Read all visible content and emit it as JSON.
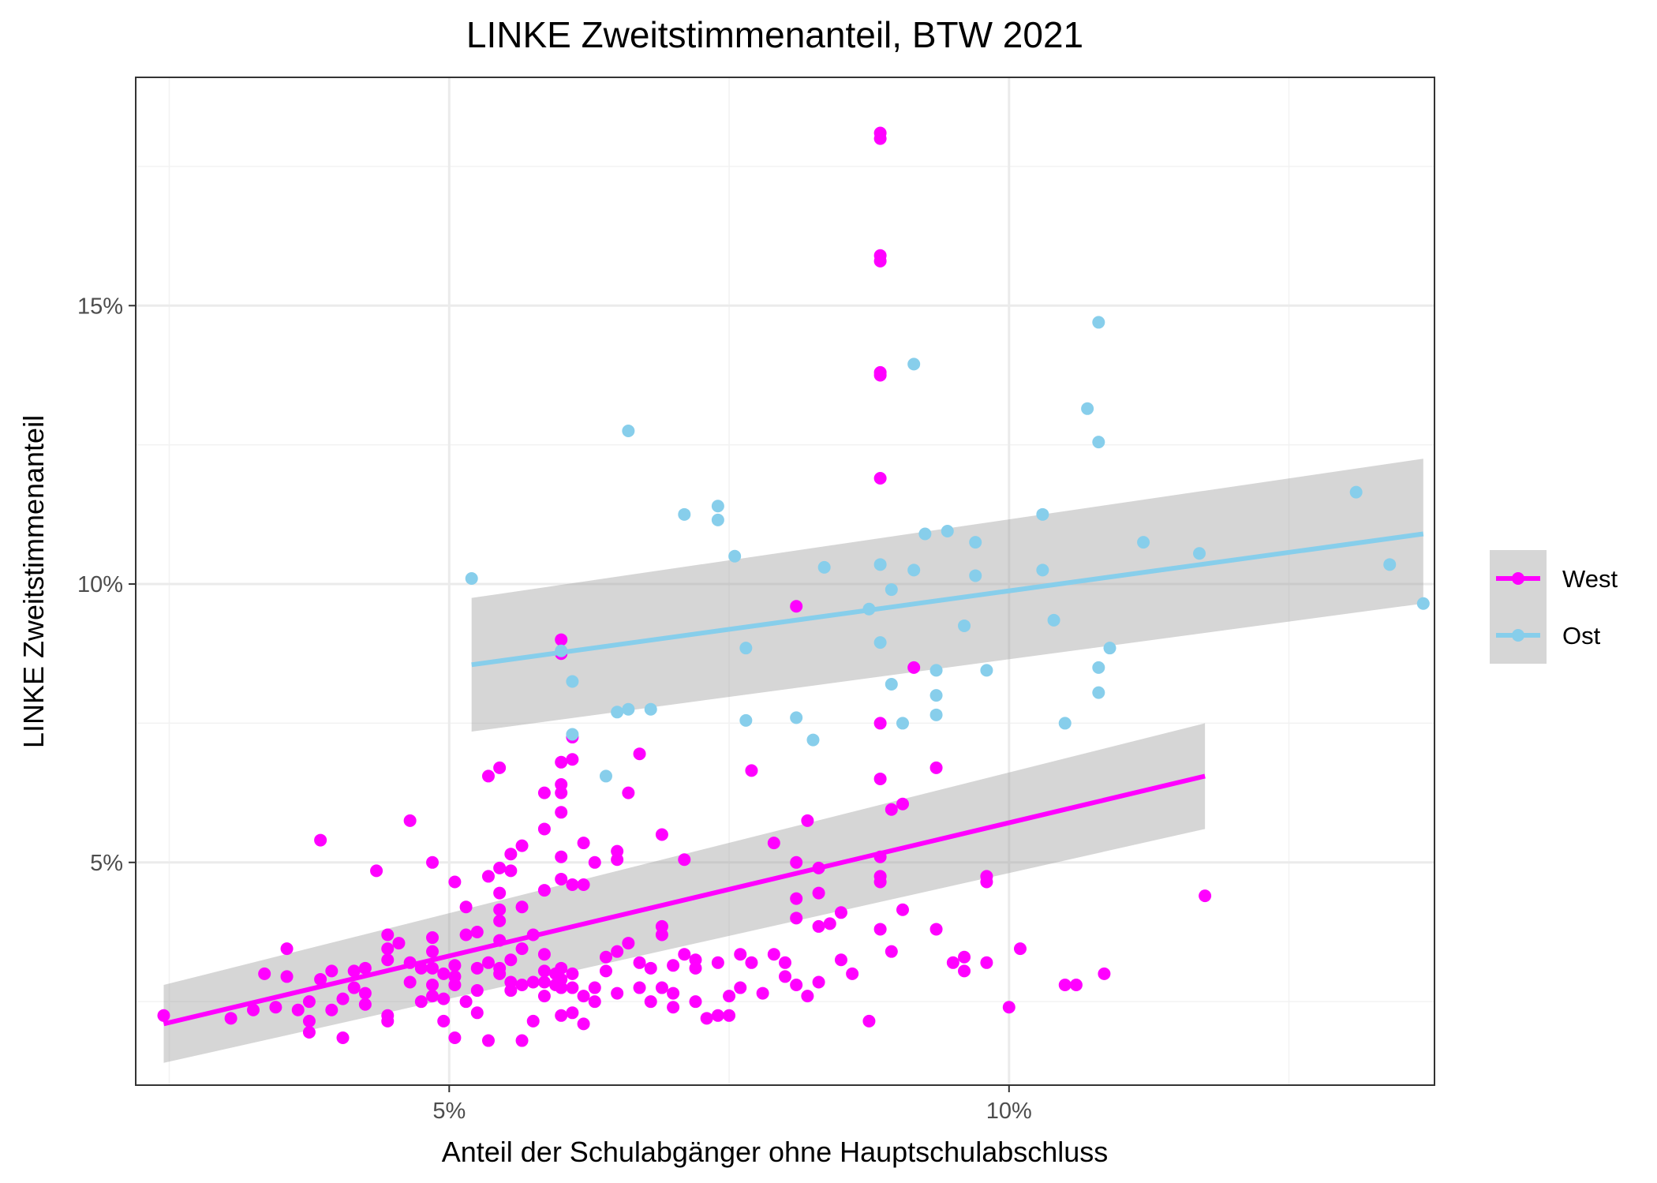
{
  "chart_data": {
    "type": "scatter",
    "title": "LINKE Zweitstimmenanteil, BTW 2021",
    "xlabel": "Anteil der Schulabgänger ohne Hauptschulabschluss",
    "ylabel": "LINKE Zweitstimmenanteil",
    "xlim": [
      2.2,
      13.8
    ],
    "ylim": [
      1.0,
      19.1
    ],
    "x_ticks": [
      5,
      10
    ],
    "x_tick_labels": [
      "5%",
      "10%"
    ],
    "y_ticks": [
      5,
      10,
      15
    ],
    "y_tick_labels": [
      "5%",
      "10%",
      "15%"
    ],
    "grid": true,
    "legend_position": "right",
    "series": [
      {
        "name": "West",
        "color": "#ff00ff",
        "trend": {
          "x": [
            2.45,
            11.75
          ],
          "y": [
            2.1,
            6.55
          ],
          "ci_lower": [
            1.4,
            5.6
          ],
          "ci_upper": [
            2.8,
            7.5
          ]
        },
        "points": [
          [
            2.45,
            2.25
          ],
          [
            3.05,
            2.2
          ],
          [
            3.25,
            2.35
          ],
          [
            3.35,
            3.0
          ],
          [
            3.45,
            2.4
          ],
          [
            3.55,
            3.45
          ],
          [
            3.55,
            2.95
          ],
          [
            3.65,
            2.35
          ],
          [
            3.75,
            2.5
          ],
          [
            3.75,
            2.15
          ],
          [
            3.75,
            1.95
          ],
          [
            3.85,
            5.4
          ],
          [
            3.85,
            2.9
          ],
          [
            3.95,
            2.35
          ],
          [
            3.95,
            3.05
          ],
          [
            4.05,
            2.55
          ],
          [
            4.05,
            1.85
          ],
          [
            4.15,
            3.05
          ],
          [
            4.15,
            2.75
          ],
          [
            4.25,
            3.1
          ],
          [
            4.25,
            2.65
          ],
          [
            4.25,
            2.45
          ],
          [
            4.35,
            4.85
          ],
          [
            4.45,
            3.7
          ],
          [
            4.45,
            3.45
          ],
          [
            4.45,
            3.25
          ],
          [
            4.45,
            2.25
          ],
          [
            4.45,
            2.15
          ],
          [
            4.55,
            3.55
          ],
          [
            4.65,
            5.75
          ],
          [
            4.65,
            3.2
          ],
          [
            4.65,
            2.85
          ],
          [
            4.75,
            3.1
          ],
          [
            4.75,
            2.5
          ],
          [
            4.85,
            5.0
          ],
          [
            4.85,
            3.65
          ],
          [
            4.85,
            3.4
          ],
          [
            4.85,
            3.1
          ],
          [
            4.85,
            2.8
          ],
          [
            4.85,
            2.6
          ],
          [
            4.95,
            3.0
          ],
          [
            4.95,
            2.55
          ],
          [
            4.95,
            2.15
          ],
          [
            5.05,
            4.65
          ],
          [
            5.05,
            3.15
          ],
          [
            5.05,
            2.95
          ],
          [
            5.05,
            2.8
          ],
          [
            5.05,
            1.85
          ],
          [
            5.15,
            4.2
          ],
          [
            5.15,
            3.7
          ],
          [
            5.15,
            2.5
          ],
          [
            5.25,
            3.75
          ],
          [
            5.25,
            3.1
          ],
          [
            5.25,
            2.7
          ],
          [
            5.25,
            2.3
          ],
          [
            5.35,
            6.55
          ],
          [
            5.35,
            4.75
          ],
          [
            5.35,
            3.2
          ],
          [
            5.35,
            1.8
          ],
          [
            5.45,
            6.7
          ],
          [
            5.45,
            4.9
          ],
          [
            5.45,
            4.45
          ],
          [
            5.45,
            4.15
          ],
          [
            5.45,
            3.95
          ],
          [
            5.45,
            3.6
          ],
          [
            5.45,
            3.1
          ],
          [
            5.45,
            3.0
          ],
          [
            5.55,
            5.15
          ],
          [
            5.55,
            4.85
          ],
          [
            5.55,
            3.25
          ],
          [
            5.55,
            2.85
          ],
          [
            5.55,
            2.7
          ],
          [
            5.65,
            5.3
          ],
          [
            5.65,
            4.2
          ],
          [
            5.65,
            3.45
          ],
          [
            5.65,
            2.8
          ],
          [
            5.65,
            1.8
          ],
          [
            5.75,
            3.7
          ],
          [
            5.75,
            2.85
          ],
          [
            5.75,
            2.15
          ],
          [
            5.85,
            6.25
          ],
          [
            5.85,
            5.6
          ],
          [
            5.85,
            4.5
          ],
          [
            5.85,
            3.35
          ],
          [
            5.85,
            3.05
          ],
          [
            5.85,
            2.85
          ],
          [
            5.85,
            2.6
          ],
          [
            5.95,
            3.0
          ],
          [
            5.95,
            2.8
          ],
          [
            6.0,
            9.0
          ],
          [
            6.0,
            8.75
          ],
          [
            6.0,
            6.8
          ],
          [
            6.0,
            6.4
          ],
          [
            6.0,
            6.25
          ],
          [
            6.0,
            5.9
          ],
          [
            6.0,
            5.1
          ],
          [
            6.0,
            4.7
          ],
          [
            6.0,
            3.1
          ],
          [
            6.0,
            2.9
          ],
          [
            6.0,
            2.75
          ],
          [
            6.0,
            2.25
          ],
          [
            6.1,
            7.25
          ],
          [
            6.1,
            6.85
          ],
          [
            6.1,
            4.6
          ],
          [
            6.1,
            3.0
          ],
          [
            6.1,
            2.75
          ],
          [
            6.1,
            2.3
          ],
          [
            6.2,
            5.35
          ],
          [
            6.2,
            4.6
          ],
          [
            6.2,
            2.6
          ],
          [
            6.2,
            2.1
          ],
          [
            6.3,
            5.0
          ],
          [
            6.3,
            2.75
          ],
          [
            6.3,
            2.5
          ],
          [
            6.4,
            3.3
          ],
          [
            6.4,
            3.05
          ],
          [
            6.5,
            3.4
          ],
          [
            6.5,
            5.2
          ],
          [
            6.5,
            5.05
          ],
          [
            6.5,
            2.65
          ],
          [
            6.6,
            6.25
          ],
          [
            6.6,
            3.55
          ],
          [
            6.7,
            6.95
          ],
          [
            6.7,
            3.2
          ],
          [
            6.7,
            2.75
          ],
          [
            6.8,
            3.1
          ],
          [
            6.8,
            2.5
          ],
          [
            6.9,
            5.5
          ],
          [
            6.9,
            3.85
          ],
          [
            6.9,
            3.7
          ],
          [
            6.9,
            2.75
          ],
          [
            7.0,
            3.15
          ],
          [
            7.0,
            2.65
          ],
          [
            7.0,
            2.4
          ],
          [
            7.1,
            5.05
          ],
          [
            7.1,
            3.35
          ],
          [
            7.2,
            2.5
          ],
          [
            7.2,
            3.25
          ],
          [
            7.2,
            3.1
          ],
          [
            7.3,
            2.2
          ],
          [
            7.4,
            3.2
          ],
          [
            7.4,
            2.25
          ],
          [
            7.5,
            2.6
          ],
          [
            7.5,
            2.25
          ],
          [
            7.6,
            3.35
          ],
          [
            7.6,
            2.75
          ],
          [
            7.7,
            6.65
          ],
          [
            7.7,
            3.2
          ],
          [
            7.8,
            2.65
          ],
          [
            7.9,
            5.35
          ],
          [
            7.9,
            3.35
          ],
          [
            8.0,
            3.2
          ],
          [
            8.0,
            2.95
          ],
          [
            8.1,
            9.6
          ],
          [
            8.1,
            5.0
          ],
          [
            8.1,
            4.35
          ],
          [
            8.1,
            4.0
          ],
          [
            8.1,
            2.8
          ],
          [
            8.2,
            5.75
          ],
          [
            8.2,
            2.6
          ],
          [
            8.3,
            4.9
          ],
          [
            8.3,
            4.45
          ],
          [
            8.3,
            3.85
          ],
          [
            8.3,
            2.85
          ],
          [
            8.4,
            3.9
          ],
          [
            8.5,
            4.1
          ],
          [
            8.5,
            3.25
          ],
          [
            8.6,
            3.0
          ],
          [
            8.75,
            2.15
          ],
          [
            8.85,
            18.1
          ],
          [
            8.85,
            18.0
          ],
          [
            8.85,
            15.9
          ],
          [
            8.85,
            15.8
          ],
          [
            8.85,
            13.75
          ],
          [
            8.85,
            13.8
          ],
          [
            8.85,
            11.9
          ],
          [
            8.85,
            7.5
          ],
          [
            8.85,
            6.5
          ],
          [
            8.85,
            5.1
          ],
          [
            8.85,
            4.75
          ],
          [
            8.85,
            4.65
          ],
          [
            8.85,
            3.8
          ],
          [
            8.95,
            5.95
          ],
          [
            8.95,
            3.4
          ],
          [
            9.05,
            6.05
          ],
          [
            9.05,
            4.15
          ],
          [
            9.15,
            8.5
          ],
          [
            9.35,
            6.7
          ],
          [
            9.35,
            3.8
          ],
          [
            9.5,
            3.2
          ],
          [
            9.6,
            3.3
          ],
          [
            9.6,
            3.05
          ],
          [
            9.8,
            4.75
          ],
          [
            9.8,
            4.65
          ],
          [
            9.8,
            3.2
          ],
          [
            10.0,
            2.4
          ],
          [
            10.1,
            3.45
          ],
          [
            10.5,
            2.8
          ],
          [
            10.6,
            2.8
          ],
          [
            10.85,
            3.0
          ],
          [
            11.75,
            4.4
          ]
        ]
      },
      {
        "name": "Ost",
        "color": "#87ceeb",
        "trend": {
          "x": [
            5.2,
            13.7
          ],
          "y": [
            8.55,
            10.9
          ],
          "ci_lower": [
            7.35,
            9.65
          ],
          "ci_upper": [
            9.75,
            12.25
          ]
        },
        "points": [
          [
            5.2,
            10.1
          ],
          [
            6.0,
            8.8
          ],
          [
            6.1,
            8.25
          ],
          [
            6.1,
            7.3
          ],
          [
            6.4,
            6.55
          ],
          [
            6.5,
            7.7
          ],
          [
            6.6,
            12.75
          ],
          [
            6.6,
            7.75
          ],
          [
            6.8,
            7.75
          ],
          [
            7.1,
            11.25
          ],
          [
            7.4,
            11.4
          ],
          [
            7.4,
            11.15
          ],
          [
            7.55,
            10.5
          ],
          [
            7.65,
            8.85
          ],
          [
            7.65,
            7.55
          ],
          [
            8.1,
            7.6
          ],
          [
            8.25,
            7.2
          ],
          [
            8.35,
            10.3
          ],
          [
            8.75,
            9.55
          ],
          [
            8.85,
            10.35
          ],
          [
            8.85,
            8.95
          ],
          [
            8.95,
            9.9
          ],
          [
            8.95,
            8.2
          ],
          [
            9.05,
            7.5
          ],
          [
            9.15,
            13.95
          ],
          [
            9.15,
            10.25
          ],
          [
            9.25,
            10.9
          ],
          [
            9.35,
            8.45
          ],
          [
            9.35,
            8.0
          ],
          [
            9.35,
            7.65
          ],
          [
            9.45,
            10.95
          ],
          [
            9.6,
            9.25
          ],
          [
            9.7,
            10.75
          ],
          [
            9.7,
            10.15
          ],
          [
            9.8,
            8.45
          ],
          [
            10.3,
            11.25
          ],
          [
            10.3,
            10.25
          ],
          [
            10.4,
            9.35
          ],
          [
            10.5,
            7.5
          ],
          [
            10.7,
            13.15
          ],
          [
            10.8,
            14.7
          ],
          [
            10.8,
            12.55
          ],
          [
            10.8,
            8.5
          ],
          [
            10.8,
            8.05
          ],
          [
            10.9,
            8.85
          ],
          [
            11.2,
            10.75
          ],
          [
            11.7,
            10.55
          ],
          [
            13.1,
            11.65
          ],
          [
            13.4,
            10.35
          ],
          [
            13.7,
            9.65
          ]
        ]
      }
    ]
  }
}
